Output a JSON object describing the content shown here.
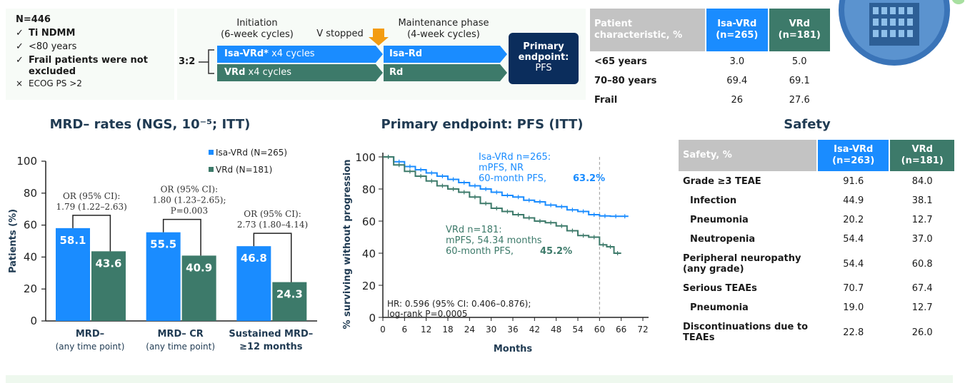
{
  "criteria": {
    "n": "N=446",
    "items": [
      {
        "mark": "✓",
        "text": "Ti NDMM",
        "bold": true
      },
      {
        "mark": "✓",
        "text": "<80 years",
        "bold": false
      },
      {
        "mark": "✓",
        "text": "Frail patients were not excluded",
        "bold": true
      },
      {
        "mark": "×",
        "text": "ECOG PS >2",
        "bold": false
      }
    ]
  },
  "design": {
    "initiation_line1": "Initiation",
    "initiation_line2": "(6-week cycles)",
    "v_stopped": "V stopped",
    "maint_line1": "Maintenance phase",
    "maint_line2": "(4-week cycles)",
    "ratio": "3:2",
    "arm1_bold": "Isa-VRd*",
    "arm1_rest": " x4 cycles",
    "arm1_maint": "Isa-Rd",
    "arm2_bold": "VRd",
    "arm2_rest": " x4 cycles",
    "arm2_maint": "Rd",
    "pe_line1": "Primary",
    "pe_line2": "endpoint:",
    "pe_line3": "PFS",
    "colors": {
      "blue": "#1a8cff",
      "green": "#3d7a6a",
      "navy": "#0b2d5c",
      "orange": "#f39c12"
    }
  },
  "patient_table": {
    "header": [
      "Patient characteristic, %",
      "Isa-VRd (n=265)",
      "VRd (n=181)"
    ],
    "rows": [
      {
        "label": "<65 years",
        "a": "3.0",
        "b": "5.0"
      },
      {
        "label": "70–80 years",
        "a": "69.4",
        "b": "69.1"
      },
      {
        "label": "Frail",
        "a": "26",
        "b": "27.6"
      }
    ]
  },
  "safety": {
    "title": "Safety",
    "header": [
      "Safety, %",
      "Isa-VRd (n=263)",
      "VRd (n=181)"
    ],
    "rows": [
      {
        "label": "Grade ≥3 TEAE",
        "a": "91.6",
        "b": "84.0",
        "indent": false
      },
      {
        "label": "Infection",
        "a": "44.9",
        "b": "38.1",
        "indent": true
      },
      {
        "label": "Pneumonia",
        "a": "20.2",
        "b": "12.7",
        "indent": true
      },
      {
        "label": "Neutropenia",
        "a": "54.4",
        "b": "37.0",
        "indent": true
      },
      {
        "label": "Peripheral neuropathy (any grade)",
        "a": "54.4",
        "b": "60.8",
        "indent": false
      },
      {
        "label": "Serious TEAEs",
        "a": "70.7",
        "b": "67.4",
        "indent": false
      },
      {
        "label": "Pneumonia",
        "a": "19.0",
        "b": "12.7",
        "indent": true
      },
      {
        "label": "Discontinuations due to TEAEs",
        "a": "22.8",
        "b": "26.0",
        "indent": false
      }
    ]
  },
  "chart_data": [
    {
      "type": "bar",
      "title": "MRD– rates (NGS, 10⁻⁵; ITT)",
      "ylabel": "Patients (%)",
      "ylim": [
        0,
        100
      ],
      "yticks": [
        0,
        20,
        40,
        60,
        80,
        100
      ],
      "categories": [
        {
          "line1": "MRD–",
          "line2": "(any time point)",
          "line2_bold": false
        },
        {
          "line1": "MRD– CR",
          "line2": "(any time point)",
          "line2_bold": false
        },
        {
          "line1": "Sustained MRD–",
          "line2": "≥12 months",
          "line2_bold": true
        }
      ],
      "series": [
        {
          "name": "Isa-VRd (N=265)",
          "color": "#1a8cff",
          "values": [
            58.1,
            55.5,
            46.8
          ]
        },
        {
          "name": "VRd (N=181)",
          "color": "#3d7a6a",
          "values": [
            43.6,
            40.9,
            24.3
          ]
        }
      ],
      "annotations": [
        [
          "OR (95% CI):",
          "1.79 (1.22–2.63)"
        ],
        [
          "OR (95% CI):",
          "1.80 (1.23–2.65);",
          "P=0.003"
        ],
        [
          "OR (95% CI):",
          "2.73 (1.80–4.14)"
        ]
      ]
    },
    {
      "type": "line",
      "title": "Primary endpoint: PFS (ITT)",
      "xlabel": "Months",
      "ylabel": "% surviving without progression",
      "xlim": [
        0,
        72
      ],
      "ylim": [
        0,
        100
      ],
      "xticks": [
        0,
        6,
        12,
        18,
        24,
        30,
        36,
        42,
        48,
        54,
        60,
        66,
        72
      ],
      "yticks": [
        0,
        20,
        40,
        60,
        80,
        100
      ],
      "reference_x": 60,
      "series": [
        {
          "name": "Isa-VRd",
          "color": "#1a8cff",
          "x": [
            0,
            3,
            6,
            9,
            12,
            15,
            18,
            21,
            24,
            27,
            30,
            33,
            36,
            39,
            42,
            45,
            48,
            51,
            54,
            57,
            60,
            63,
            66,
            68
          ],
          "y": [
            100,
            97,
            94,
            92,
            90,
            88,
            86,
            84,
            82,
            80,
            78,
            76,
            75,
            73,
            72,
            70,
            69,
            67,
            66,
            64,
            63.2,
            63,
            63,
            63
          ],
          "labels": [
            "Isa-VRd n=265:",
            "mPFS, NR",
            "60-month PFS, ",
            "63.2%"
          ]
        },
        {
          "name": "VRd",
          "color": "#3d7a6a",
          "x": [
            0,
            3,
            6,
            9,
            12,
            15,
            18,
            21,
            24,
            27,
            30,
            33,
            36,
            39,
            42,
            45,
            48,
            51,
            54,
            57,
            60,
            62,
            64,
            66
          ],
          "y": [
            100,
            95,
            91,
            88,
            85,
            82,
            80,
            78,
            75,
            71,
            68,
            66,
            64,
            62,
            60,
            59,
            57,
            54,
            51,
            50,
            45.2,
            44,
            40,
            40
          ],
          "labels": [
            "VRd n=181:",
            "mPFS, 54.34 months",
            "60-month PFS, ",
            "45.2%"
          ]
        }
      ],
      "hr_text": [
        "HR: 0.596 (95% CI: 0.406–0.876);",
        "log-rank P=0.0005"
      ]
    }
  ]
}
